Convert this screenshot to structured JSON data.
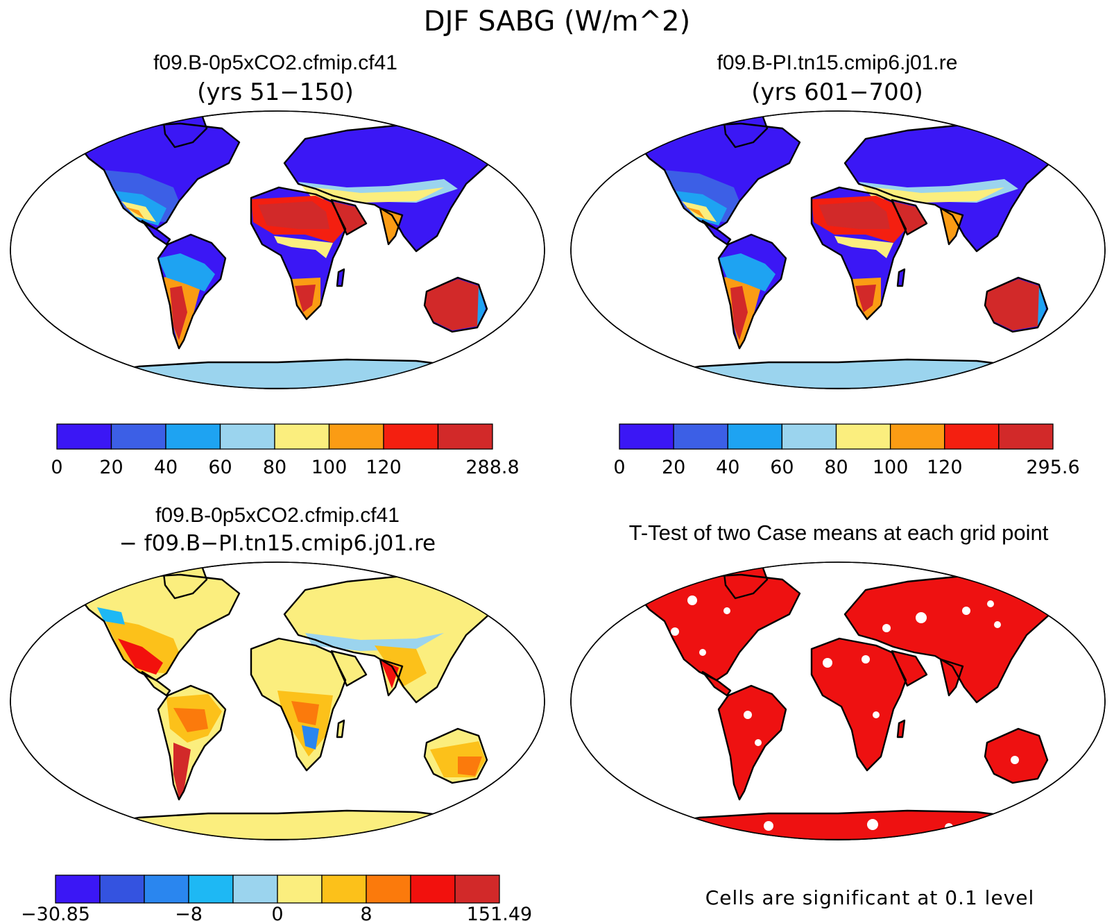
{
  "figure": {
    "main_title": "DJF SABG (W/m^2)"
  },
  "panels": [
    {
      "id": "case1",
      "title": "f09.B-0p5xCO2.cfmip.cf41",
      "subtitle": "(yrs 51−150)",
      "colorbar": {
        "colors": [
          "#3b17f5",
          "#3c5fe6",
          "#1ea3f2",
          "#9bd4ee",
          "#fbee7e",
          "#fb9c14",
          "#f41f10",
          "#d22929"
        ],
        "labels": [
          "0",
          "20",
          "40",
          "60",
          "80",
          "100",
          "120",
          "288.8"
        ]
      }
    },
    {
      "id": "case2",
      "title": "f09.B-PI.tn15.cmip6.j01.re",
      "subtitle": "(yrs 601−700)",
      "colorbar": {
        "colors": [
          "#3b17f5",
          "#3c5fe6",
          "#1ea3f2",
          "#9bd4ee",
          "#fbee7e",
          "#fb9c14",
          "#f41f10",
          "#d22929"
        ],
        "labels": [
          "0",
          "20",
          "40",
          "60",
          "80",
          "100",
          "120",
          "295.6"
        ]
      }
    },
    {
      "id": "difference",
      "title": "f09.B-0p5xCO2.cfmip.cf41",
      "subtitle": "− f09.B−PI.tn15.cmip6.j01.re",
      "colorbar": {
        "colors": [
          "#3b17f5",
          "#3453e0",
          "#2a86ef",
          "#1eb8f4",
          "#9bd4ee",
          "#fbee7e",
          "#fcc11a",
          "#fb7a0c",
          "#f2110d",
          "#d22929"
        ],
        "labels": [
          "−30.85",
          "−8",
          "0",
          "8",
          "151.49"
        ]
      }
    },
    {
      "id": "ttest",
      "title": "T-Test of two Case means at each grid point",
      "note": "Cells are significant at 0.1 level",
      "significant_color": "#ee1111"
    }
  ]
}
